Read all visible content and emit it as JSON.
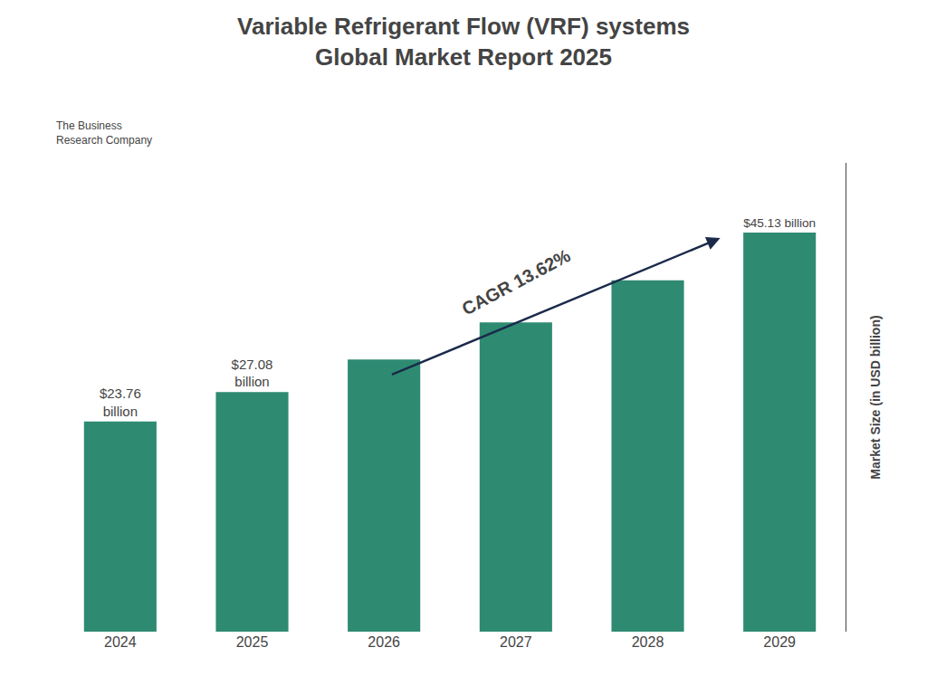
{
  "chart_data": {
    "type": "bar",
    "title": "Variable Refrigerant Flow (VRF) systems",
    "subtitle": "Global Market Report 2025",
    "categories": [
      "2024",
      "2025",
      "2026",
      "2027",
      "2028",
      "2029"
    ],
    "values": [
      23.76,
      27.08,
      30.77,
      34.96,
      39.72,
      45.13
    ],
    "value_labels": [
      "$23.76\nbillion",
      "$27.08\nbillion",
      null,
      null,
      null,
      "$45.13 billion"
    ],
    "color": "#2e8b72",
    "ylabel": "Market Size (in USD billion)",
    "ylim": [
      0,
      53
    ],
    "yticks": [],
    "tick_labels": "x",
    "grid": false,
    "annotations": [
      "CAGR 13.62%",
      "The Business\nResearch Company"
    ]
  }
}
